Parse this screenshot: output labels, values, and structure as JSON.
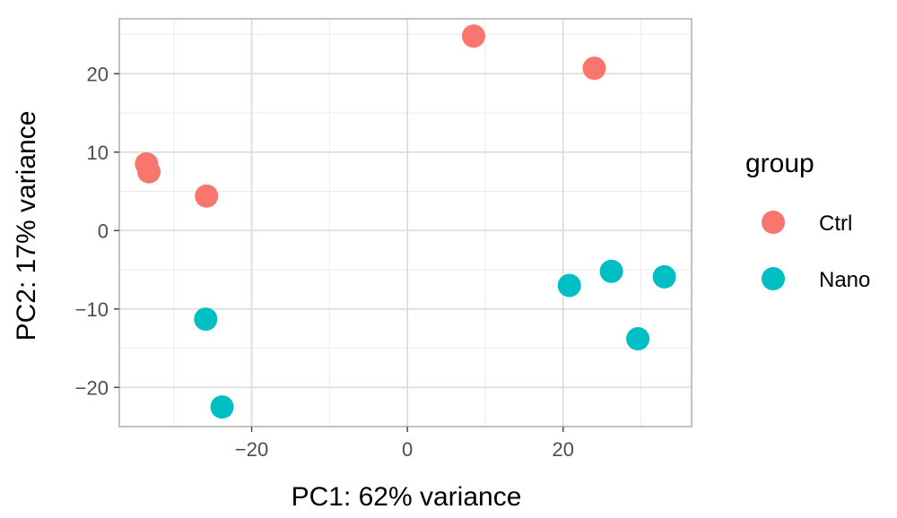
{
  "chart_data": {
    "type": "scatter",
    "title": "",
    "xlabel": "PC1: 62% variance",
    "ylabel": "PC2: 17% variance",
    "xlim": [
      -37,
      36.5
    ],
    "ylim": [
      -25,
      27
    ],
    "xticks": [
      -20,
      0,
      20
    ],
    "yticks": [
      -20,
      -10,
      0,
      10,
      20
    ],
    "xtick_labels": [
      "−20",
      "0",
      "20"
    ],
    "ytick_labels": [
      "−20",
      "−10",
      "0",
      "10",
      "20"
    ],
    "grid": true,
    "legend": {
      "title": "group",
      "position": "right"
    },
    "series": [
      {
        "name": "Ctrl",
        "color": "#F8766D",
        "points": [
          {
            "x": 8.5,
            "y": 24.8
          },
          {
            "x": 24.0,
            "y": 20.7
          },
          {
            "x": -33.5,
            "y": 8.5
          },
          {
            "x": -33.2,
            "y": 7.5
          },
          {
            "x": -25.8,
            "y": 4.4
          }
        ]
      },
      {
        "name": "Nano",
        "color": "#00BFC4",
        "points": [
          {
            "x": 26.2,
            "y": -5.2
          },
          {
            "x": 33.0,
            "y": -5.9
          },
          {
            "x": 20.8,
            "y": -7.0
          },
          {
            "x": 29.6,
            "y": -13.8
          },
          {
            "x": -25.9,
            "y": -11.3
          },
          {
            "x": -23.8,
            "y": -22.5
          }
        ]
      }
    ]
  }
}
